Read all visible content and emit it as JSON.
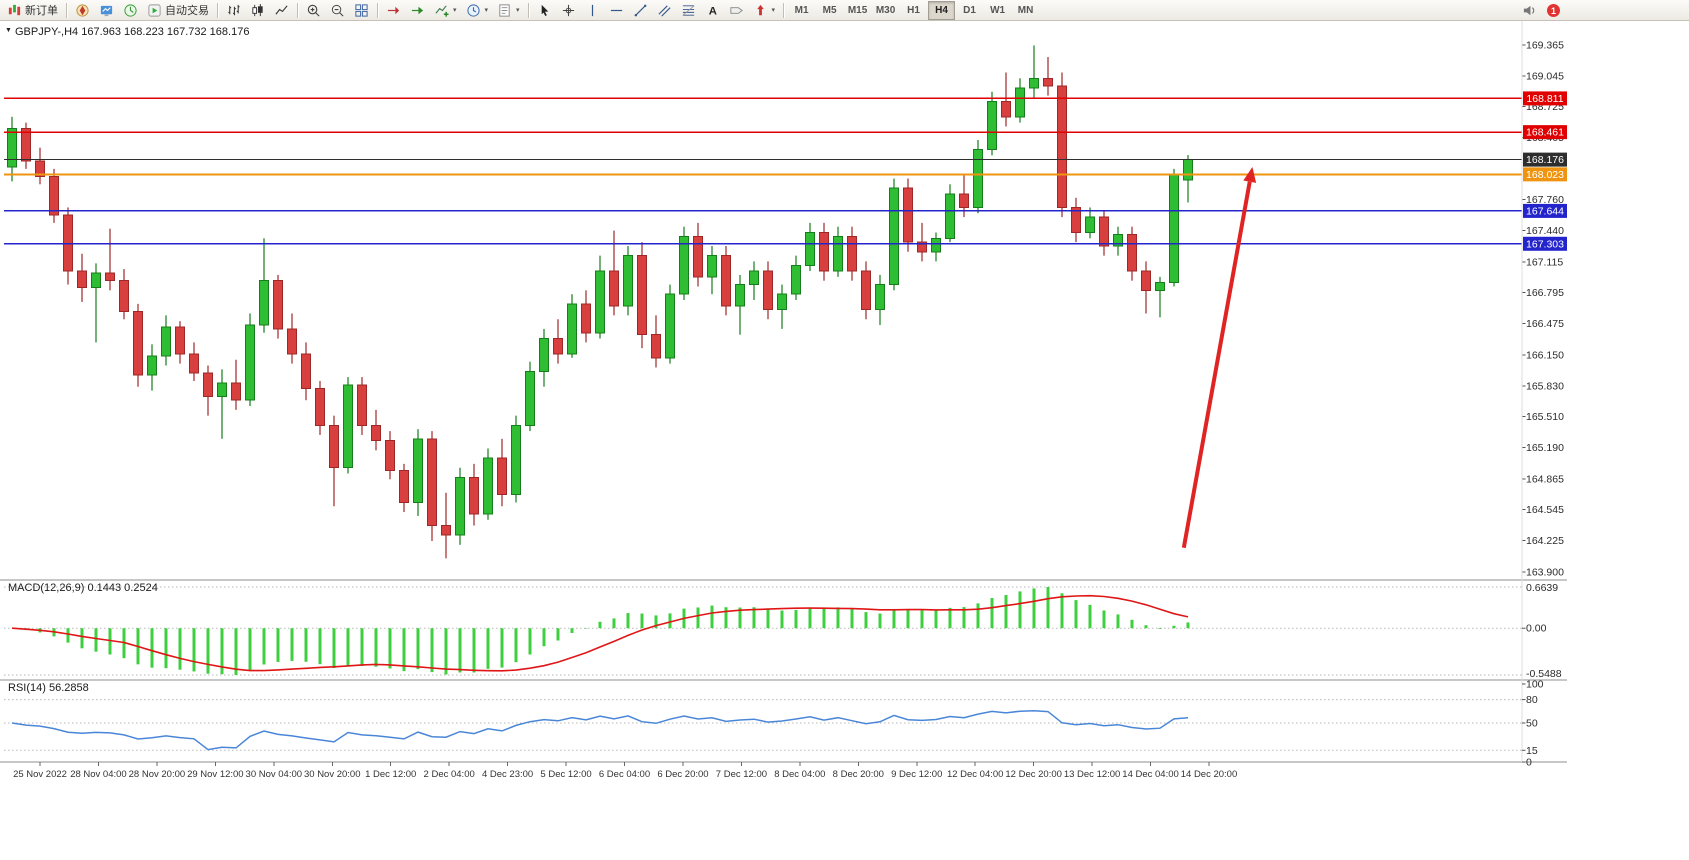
{
  "toolbar": {
    "new_order_label": "新订单",
    "auto_trading_label": "自动交易",
    "timeframes": [
      "M1",
      "M5",
      "M15",
      "M30",
      "H1",
      "H4",
      "D1",
      "W1",
      "MN"
    ],
    "active_timeframe": "H4",
    "notification_badge": "1"
  },
  "chart": {
    "title": "GBPJPY-,H4 167.963 168.223 167.732 168.176",
    "macd_label": "MACD(12,26,9) 0.1443 0.2524",
    "rsi_label": "RSI(14) 56.2858",
    "collapse_glyph": "▼"
  },
  "colors": {
    "bull": "#2fbe33",
    "bull_border": "#157d1b",
    "bear": "#d84040",
    "bear_border": "#9e2727",
    "macd_bar": "#3ecf3e",
    "macd_signal": "#e01616",
    "rsi_line": "#4a86d8",
    "arrow": "#e02424"
  },
  "chart_data": [
    {
      "type": "candlestick",
      "symbol": "GBPJPY-",
      "timeframe": "H4",
      "current_ohlc": {
        "open": "167.963",
        "high": "168.223",
        "low": "167.732",
        "close": "168.176"
      },
      "ylim": [
        163.82,
        169.62
      ],
      "y_axis_labels": [
        "169.365",
        "169.045",
        "168.725",
        "168.405",
        "167.760",
        "167.440",
        "167.115",
        "166.795",
        "166.475",
        "166.150",
        "165.830",
        "165.510",
        "165.190",
        "164.865",
        "164.545",
        "164.225",
        "163.900"
      ],
      "x_labels": [
        "25 Nov 2022",
        "28 Nov 04:00",
        "28 Nov 20:00",
        "29 Nov 12:00",
        "30 Nov 04:00",
        "30 Nov 20:00",
        "1 Dec 12:00",
        "2 Dec 04:00",
        "4 Dec 23:00",
        "5 Dec 12:00",
        "6 Dec 04:00",
        "6 Dec 20:00",
        "7 Dec 12:00",
        "8 Dec 04:00",
        "8 Dec 20:00",
        "9 Dec 12:00",
        "12 Dec 04:00",
        "12 Dec 20:00",
        "13 Dec 12:00",
        "14 Dec 04:00",
        "14 Dec 20:00"
      ],
      "candles": [
        [
          168.1,
          168.62,
          167.95,
          168.5
        ],
        [
          168.5,
          168.56,
          168.08,
          168.16
        ],
        [
          168.16,
          168.3,
          167.92,
          168.0
        ],
        [
          168.0,
          168.08,
          167.52,
          167.6
        ],
        [
          167.6,
          167.68,
          166.88,
          167.02
        ],
        [
          167.02,
          167.2,
          166.7,
          166.85
        ],
        [
          166.85,
          167.1,
          166.28,
          167.0
        ],
        [
          167.0,
          167.46,
          166.82,
          166.92
        ],
        [
          166.92,
          167.04,
          166.52,
          166.6
        ],
        [
          166.6,
          166.68,
          165.82,
          165.94
        ],
        [
          165.94,
          166.26,
          165.78,
          166.14
        ],
        [
          166.14,
          166.56,
          166.04,
          166.44
        ],
        [
          166.44,
          166.5,
          166.06,
          166.16
        ],
        [
          166.16,
          166.28,
          165.88,
          165.96
        ],
        [
          165.96,
          166.04,
          165.52,
          165.72
        ],
        [
          165.72,
          166.0,
          165.28,
          165.86
        ],
        [
          165.86,
          166.1,
          165.58,
          165.68
        ],
        [
          165.68,
          166.58,
          165.62,
          166.46
        ],
        [
          166.46,
          167.36,
          166.38,
          166.92
        ],
        [
          166.92,
          166.98,
          166.32,
          166.42
        ],
        [
          166.42,
          166.58,
          166.06,
          166.16
        ],
        [
          166.16,
          166.28,
          165.68,
          165.8
        ],
        [
          165.8,
          165.88,
          165.32,
          165.42
        ],
        [
          165.42,
          165.52,
          164.58,
          164.98
        ],
        [
          164.98,
          165.92,
          164.92,
          165.84
        ],
        [
          165.84,
          165.92,
          165.32,
          165.42
        ],
        [
          165.42,
          165.58,
          165.16,
          165.26
        ],
        [
          165.26,
          165.36,
          164.86,
          164.95
        ],
        [
          164.95,
          165.02,
          164.52,
          164.62
        ],
        [
          164.62,
          165.38,
          164.48,
          165.28
        ],
        [
          165.28,
          165.36,
          164.22,
          164.38
        ],
        [
          164.38,
          164.72,
          164.04,
          164.28
        ],
        [
          164.28,
          164.98,
          164.18,
          164.88
        ],
        [
          164.88,
          165.02,
          164.38,
          164.5
        ],
        [
          164.5,
          165.18,
          164.44,
          165.08
        ],
        [
          165.08,
          165.28,
          164.58,
          164.7
        ],
        [
          164.7,
          165.52,
          164.62,
          165.42
        ],
        [
          165.42,
          166.08,
          165.36,
          165.98
        ],
        [
          165.98,
          166.42,
          165.82,
          166.32
        ],
        [
          166.32,
          166.52,
          166.06,
          166.16
        ],
        [
          166.16,
          166.78,
          166.12,
          166.68
        ],
        [
          166.68,
          166.82,
          166.28,
          166.38
        ],
        [
          166.38,
          167.18,
          166.32,
          167.02
        ],
        [
          167.02,
          167.44,
          166.56,
          166.66
        ],
        [
          166.66,
          167.28,
          166.56,
          167.18
        ],
        [
          167.18,
          167.32,
          166.22,
          166.36
        ],
        [
          166.36,
          166.56,
          166.02,
          166.12
        ],
        [
          166.12,
          166.88,
          166.06,
          166.78
        ],
        [
          166.78,
          167.48,
          166.72,
          167.38
        ],
        [
          167.38,
          167.52,
          166.86,
          166.96
        ],
        [
          166.96,
          167.28,
          166.78,
          167.18
        ],
        [
          167.18,
          167.28,
          166.56,
          166.66
        ],
        [
          166.66,
          166.98,
          166.36,
          166.88
        ],
        [
          166.88,
          167.12,
          166.72,
          167.02
        ],
        [
          167.02,
          167.12,
          166.52,
          166.62
        ],
        [
          166.62,
          166.88,
          166.42,
          166.78
        ],
        [
          166.78,
          167.18,
          166.72,
          167.08
        ],
        [
          167.08,
          167.52,
          167.02,
          167.42
        ],
        [
          167.42,
          167.52,
          166.92,
          167.02
        ],
        [
          167.02,
          167.48,
          166.96,
          167.38
        ],
        [
          167.38,
          167.48,
          166.92,
          167.02
        ],
        [
          167.02,
          167.12,
          166.52,
          166.62
        ],
        [
          166.62,
          166.98,
          166.46,
          166.88
        ],
        [
          166.88,
          167.98,
          166.82,
          167.88
        ],
        [
          167.88,
          167.98,
          167.22,
          167.32
        ],
        [
          167.32,
          167.52,
          167.12,
          167.22
        ],
        [
          167.22,
          167.42,
          167.12,
          167.36
        ],
        [
          167.36,
          167.92,
          167.32,
          167.82
        ],
        [
          167.82,
          168.02,
          167.58,
          167.68
        ],
        [
          167.68,
          168.38,
          167.62,
          168.28
        ],
        [
          168.28,
          168.88,
          168.22,
          168.78
        ],
        [
          168.78,
          169.08,
          168.52,
          168.62
        ],
        [
          168.62,
          169.02,
          168.56,
          168.92
        ],
        [
          168.92,
          169.36,
          168.82,
          169.02
        ],
        [
          169.02,
          169.24,
          168.84,
          168.94
        ],
        [
          168.94,
          169.08,
          167.58,
          167.68
        ],
        [
          167.68,
          167.78,
          167.32,
          167.42
        ],
        [
          167.42,
          167.68,
          167.36,
          167.58
        ],
        [
          167.58,
          167.64,
          167.18,
          167.28
        ],
        [
          167.28,
          167.48,
          167.18,
          167.4
        ],
        [
          167.4,
          167.48,
          166.92,
          167.02
        ],
        [
          167.02,
          167.12,
          166.58,
          166.82
        ],
        [
          166.82,
          166.96,
          166.54,
          166.9
        ],
        [
          166.9,
          168.08,
          166.86,
          168.02
        ],
        [
          167.963,
          168.223,
          167.732,
          168.176
        ]
      ],
      "hlines": [
        {
          "price": 168.811,
          "label": "168.811",
          "color": "#e00000",
          "width": 1.6
        },
        {
          "price": 168.461,
          "label": "168.461",
          "color": "#e00000",
          "width": 1.6
        },
        {
          "price": 168.176,
          "label": "168.176",
          "color": "#2e2e2e",
          "width": 1,
          "role": "bid"
        },
        {
          "price": 168.023,
          "label": "168.023",
          "color": "#ef9411",
          "width": 1.8
        },
        {
          "price": 167.644,
          "label": "167.644",
          "color": "#2424cc",
          "width": 1.6
        },
        {
          "price": 167.303,
          "label": "167.303",
          "color": "#2424cc",
          "width": 1.6
        }
      ],
      "arrow": {
        "from_bar": 83.7,
        "from_price": 164.15,
        "to_bar": 88.6,
        "to_price": 168.1
      }
    },
    {
      "type": "macd",
      "label": "MACD(12,26,9) 0.1443 0.2524",
      "params": {
        "fast": 12,
        "slow": 26,
        "signal": 9
      },
      "current": {
        "macd": "0.1443",
        "signal": "0.2524"
      },
      "axis_labels": {
        "top": "0.6639",
        "zero": "0.00",
        "bottom": "-0.5488"
      }
    },
    {
      "type": "rsi",
      "label": "RSI(14) 56.2858",
      "period": 14,
      "current": "56.2858",
      "range": [
        0,
        100
      ],
      "levels": [
        80,
        50,
        15
      ],
      "axis_labels": [
        "100",
        "80",
        "50",
        "15",
        "0"
      ]
    }
  ]
}
